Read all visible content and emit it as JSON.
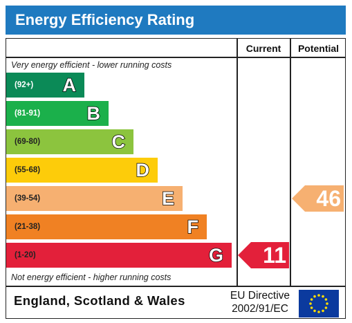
{
  "title": "Energy Efficiency Rating",
  "columns": {
    "current": "Current",
    "potential": "Potential"
  },
  "top_note": "Very energy efficient - lower running costs",
  "bottom_note": "Not energy efficient - higher running costs",
  "bands": [
    {
      "range": "(92+)",
      "letter": "A",
      "color": "#0b8a57",
      "range_color": "#ffffff"
    },
    {
      "range": "(81-91)",
      "letter": "B",
      "color": "#1bb04b",
      "range_color": "#ffffff"
    },
    {
      "range": "(69-80)",
      "letter": "C",
      "color": "#8cc43e",
      "range_color": "#222222"
    },
    {
      "range": "(55-68)",
      "letter": "D",
      "color": "#fdcc0a",
      "range_color": "#222222"
    },
    {
      "range": "(39-54)",
      "letter": "E",
      "color": "#f6b071",
      "range_color": "#222222"
    },
    {
      "range": "(21-38)",
      "letter": "F",
      "color": "#f08123",
      "range_color": "#222222"
    },
    {
      "range": "(1-20)",
      "letter": "G",
      "color": "#e3203a",
      "range_color": "#222222"
    }
  ],
  "current": {
    "value": "11",
    "band": "G",
    "color": "#e3203a"
  },
  "potential": {
    "value": "46",
    "band": "E",
    "color": "#f6b071"
  },
  "footer": {
    "region": "England, Scotland & Wales",
    "directive_line1": "EU Directive",
    "directive_line2": "2002/91/EC"
  }
}
